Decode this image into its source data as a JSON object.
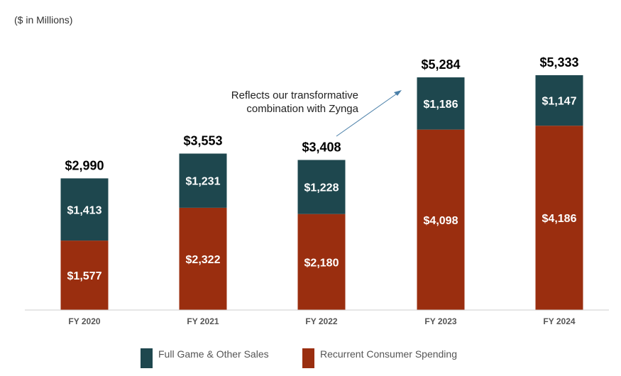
{
  "chart_data": {
    "type": "bar",
    "stacked": true,
    "title": "",
    "subtitle": "($ in Millions)",
    "xlabel": "",
    "ylabel": "",
    "ylim": [
      0,
      5333
    ],
    "grid": false,
    "legend_position": "bottom-center",
    "categories": [
      "FY 2020",
      "FY 2021",
      "FY 2022",
      "FY 2023",
      "FY 2024"
    ],
    "series": [
      {
        "name": "Recurrent Consumer Spending",
        "color": "#9a2e0f",
        "values": [
          1577,
          2322,
          2180,
          4098,
          4186
        ],
        "labels": [
          "$1,577",
          "$2,322",
          "$2,180",
          "$4,098",
          "$4,186"
        ]
      },
      {
        "name": "Full Game & Other Sales",
        "color": "#1e474e",
        "values": [
          1413,
          1231,
          1228,
          1186,
          1147
        ],
        "labels": [
          "$1,413",
          "$1,231",
          "$1,228",
          "$1,186",
          "$1,147"
        ]
      }
    ],
    "totals": [
      2990,
      3553,
      3408,
      5284,
      5333
    ],
    "total_labels": [
      "$2,990",
      "$3,553",
      "$3,408",
      "$5,284",
      "$5,333"
    ],
    "annotation": {
      "lines": [
        "Reflects our transformative",
        "combination with Zynga"
      ],
      "points_to": "FY 2023",
      "arrow_color": "#4a7fa8"
    },
    "axis_color": "#cccccc"
  }
}
